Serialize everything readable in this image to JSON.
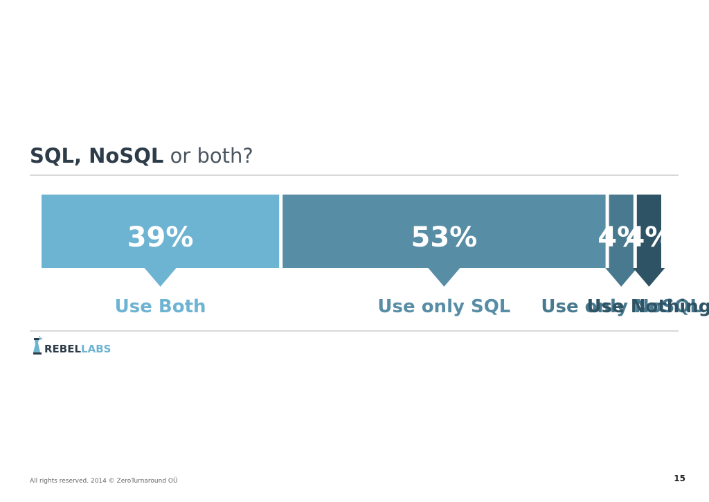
{
  "title": {
    "bold": "SQL, NoSQL",
    "light": "or both?"
  },
  "logo": {
    "part1": "REBEL",
    "part2": "LABS",
    "color1": "#2d3c48",
    "color2": "#6db3d2"
  },
  "footer": {
    "copyright": "All rights reserved. 2014 © ZeroTurnaround OÜ",
    "page_number": "15"
  },
  "chart_data": {
    "type": "bar",
    "orientation": "horizontal-stacked",
    "unit": "%",
    "categories": [
      "Use Both",
      "Use only SQL",
      "Use only NoSQL",
      "Use Nothing"
    ],
    "values": [
      39,
      53,
      4,
      4
    ],
    "value_labels": [
      "39%",
      "53%",
      "4%",
      "4%"
    ],
    "colors": [
      "#6db3d2",
      "#588da6",
      "#48798e",
      "#2e5365"
    ],
    "label_colors": [
      "#6db3d2",
      "#588da6",
      "#48798e",
      "#2e5365"
    ],
    "total": 100
  }
}
